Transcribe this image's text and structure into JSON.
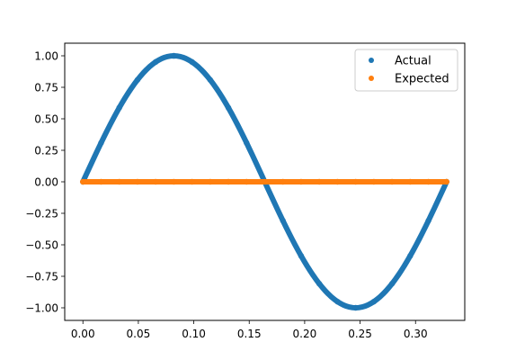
{
  "chart_data": {
    "type": "scatter",
    "title": "",
    "xlabel": "",
    "ylabel": "",
    "xlim": [
      -0.0164,
      0.3444
    ],
    "ylim": [
      -1.1,
      1.1
    ],
    "x_ticks": [
      0.0,
      0.05,
      0.1,
      0.15,
      0.2,
      0.25,
      0.3
    ],
    "x_tick_labels": [
      "0.00",
      "0.05",
      "0.10",
      "0.15",
      "0.20",
      "0.25",
      "0.30"
    ],
    "y_ticks": [
      1.0,
      0.75,
      0.5,
      0.25,
      0.0,
      -0.25,
      -0.5,
      -0.75,
      -1.0
    ],
    "y_tick_labels": [
      "1.00",
      "0.75",
      "0.50",
      "0.25",
      "0.00",
      "−0.25",
      "−0.50",
      "−0.75",
      "−1.00"
    ],
    "grid": false,
    "legend_position": "top-right",
    "x": [
      0.0,
      0.0164,
      0.0328,
      0.0492,
      0.0656,
      0.082,
      0.0984,
      0.1148,
      0.1312,
      0.1476,
      0.164,
      0.1804,
      0.1968,
      0.2132,
      0.2296,
      0.246,
      0.2624,
      0.2788,
      0.2952,
      0.3116,
      0.328
    ],
    "series": [
      {
        "name": "Actual",
        "color": "#1f77b4",
        "values": [
          0.0,
          0.309,
          0.588,
          0.809,
          0.951,
          1.0,
          0.951,
          0.809,
          0.588,
          0.309,
          0.0,
          -0.309,
          -0.588,
          -0.809,
          -0.951,
          -1.0,
          -0.951,
          -0.809,
          -0.588,
          -0.309,
          0.0
        ]
      },
      {
        "name": "Expected",
        "color": "#ff7f0e",
        "values": [
          0.0,
          0.0,
          0.0,
          0.0,
          0.0,
          0.0,
          0.0,
          0.0,
          0.0,
          0.0,
          0.0,
          0.0,
          0.0,
          0.0,
          0.0,
          0.0,
          0.0,
          0.0,
          0.0,
          0.0,
          0.0
        ]
      }
    ]
  }
}
